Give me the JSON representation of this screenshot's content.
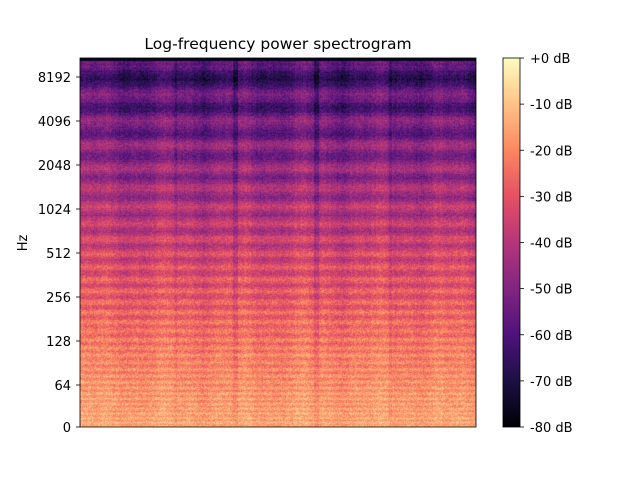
{
  "chart_data": {
    "type": "heatmap",
    "title": "Log-frequency power spectrogram",
    "xlabel": "",
    "ylabel": "Hz",
    "y_scale": "log",
    "yticks": [
      "0",
      "64",
      "128",
      "256",
      "512",
      "1024",
      "2048",
      "4096",
      "8192"
    ],
    "colorbar": {
      "label": "",
      "range": [
        -80,
        0
      ],
      "ticks": [
        "+0 dB",
        "-10 dB",
        "-20 dB",
        "-30 dB",
        "-40 dB",
        "-50 dB",
        "-60 dB",
        "-70 dB",
        "-80 dB"
      ]
    },
    "colormap": "magma",
    "grid": false
  }
}
